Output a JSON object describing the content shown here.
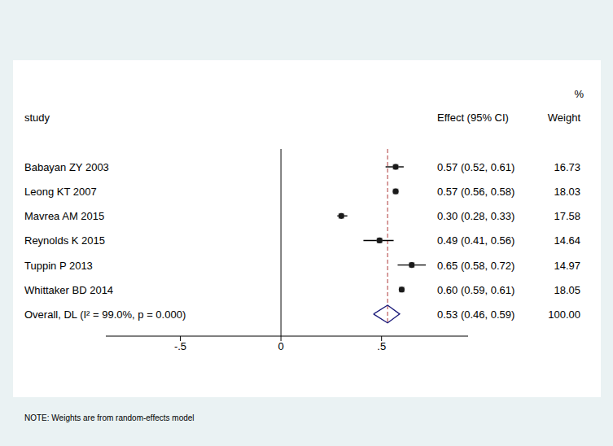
{
  "chart_data": {
    "type": "forest",
    "column_headers": {
      "study": "study",
      "effect": "Effect (95% CI)",
      "weight_unit": "%",
      "weight": "Weight"
    },
    "studies": [
      {
        "name": "Babayan ZY 2003",
        "effect": 0.57,
        "ci_low": 0.52,
        "ci_high": 0.61,
        "weight": 16.73,
        "value_label": "0.57 (0.52, 0.61)"
      },
      {
        "name": "Leong KT 2007",
        "effect": 0.57,
        "ci_low": 0.56,
        "ci_high": 0.58,
        "weight": 18.03,
        "value_label": "0.57 (0.56, 0.58)"
      },
      {
        "name": "Mavrea AM 2015",
        "effect": 0.3,
        "ci_low": 0.28,
        "ci_high": 0.33,
        "weight": 17.58,
        "value_label": "0.30 (0.28, 0.33)"
      },
      {
        "name": "Reynolds K 2015",
        "effect": 0.49,
        "ci_low": 0.41,
        "ci_high": 0.56,
        "weight": 14.64,
        "value_label": "0.49 (0.41, 0.56)"
      },
      {
        "name": "Tuppin P 2013",
        "effect": 0.65,
        "ci_low": 0.58,
        "ci_high": 0.72,
        "weight": 14.97,
        "value_label": "0.65 (0.58, 0.72)"
      },
      {
        "name": "Whittaker BD 2014",
        "effect": 0.6,
        "ci_low": 0.59,
        "ci_high": 0.61,
        "weight": 18.05,
        "value_label": "0.60 (0.59, 0.61)"
      }
    ],
    "overall": {
      "name": "Overall, DL (I² = 99.0%, p = 0.000)",
      "effect": 0.53,
      "ci_low": 0.46,
      "ci_high": 0.59,
      "weight": 100,
      "weight_label": "100.00",
      "value_label": "0.53 (0.46, 0.59)"
    },
    "null_line": 0,
    "xlim": [
      -0.87,
      0.93
    ],
    "xticks": [
      {
        "value": -0.5,
        "label": "-.5"
      },
      0,
      {
        "value": 0.5,
        "label": ".5"
      }
    ],
    "tick_labels": "x",
    "note": "NOTE: Weights are from random-effects model"
  }
}
